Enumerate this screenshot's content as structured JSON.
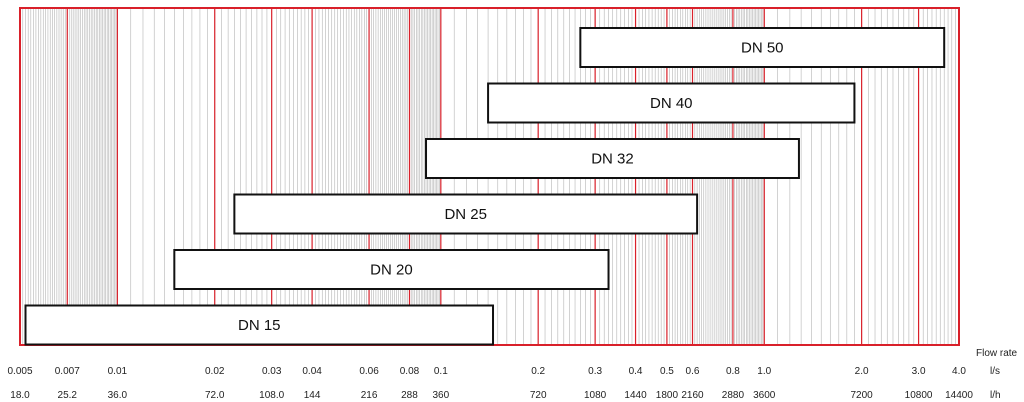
{
  "chart_data": {
    "type": "bar",
    "orientation": "horizontal-range",
    "x_scale": "log",
    "xlim": [
      0.005,
      4.0
    ],
    "grid": true,
    "colors": {
      "major_grid": "#d9202a",
      "minor_grid": "#b4b4b4",
      "frame": "#d9202a",
      "bar_fill": "#ffffff",
      "bar_stroke": "#111111"
    },
    "flow_rate_label": "Flow rate",
    "units": {
      "ls": "l/s",
      "lh": "l/h"
    },
    "major_ticks": [
      0.005,
      0.007,
      0.01,
      0.02,
      0.03,
      0.04,
      0.06,
      0.08,
      0.1,
      0.2,
      0.3,
      0.4,
      0.5,
      0.6,
      0.8,
      1.0,
      2.0,
      3.0,
      4.0
    ],
    "ticks_ls": [
      {
        "value": 0.005,
        "label": "0.005"
      },
      {
        "value": 0.007,
        "label": "0.007"
      },
      {
        "value": 0.01,
        "label": "0.01"
      },
      {
        "value": 0.02,
        "label": "0.02"
      },
      {
        "value": 0.03,
        "label": "0.03"
      },
      {
        "value": 0.04,
        "label": "0.04"
      },
      {
        "value": 0.06,
        "label": "0.06"
      },
      {
        "value": 0.08,
        "label": "0.08"
      },
      {
        "value": 0.1,
        "label": "0.1"
      },
      {
        "value": 0.2,
        "label": "0.2"
      },
      {
        "value": 0.3,
        "label": "0.3"
      },
      {
        "value": 0.4,
        "label": "0.4"
      },
      {
        "value": 0.5,
        "label": "0.5"
      },
      {
        "value": 0.6,
        "label": "0.6"
      },
      {
        "value": 0.8,
        "label": "0.8"
      },
      {
        "value": 1.0,
        "label": "1.0"
      },
      {
        "value": 2.0,
        "label": "2.0"
      },
      {
        "value": 3.0,
        "label": "3.0"
      },
      {
        "value": 4.0,
        "label": "4.0"
      }
    ],
    "ticks_lh": [
      {
        "value": 0.005,
        "label": "18.0"
      },
      {
        "value": 0.007,
        "label": "25.2"
      },
      {
        "value": 0.01,
        "label": "36.0"
      },
      {
        "value": 0.02,
        "label": "72.0"
      },
      {
        "value": 0.03,
        "label": "108.0"
      },
      {
        "value": 0.04,
        "label": "144"
      },
      {
        "value": 0.06,
        "label": "216"
      },
      {
        "value": 0.08,
        "label": "288"
      },
      {
        "value": 0.1,
        "label": "360"
      },
      {
        "value": 0.2,
        "label": "720"
      },
      {
        "value": 0.3,
        "label": "1080"
      },
      {
        "value": 0.4,
        "label": "1440"
      },
      {
        "value": 0.5,
        "label": "1800"
      },
      {
        "value": 0.6,
        "label": "2160"
      },
      {
        "value": 0.8,
        "label": "2880"
      },
      {
        "value": 1.0,
        "label": "3600"
      },
      {
        "value": 2.0,
        "label": "7200"
      },
      {
        "value": 3.0,
        "label": "10800"
      },
      {
        "value": 4.0,
        "label": "14400"
      }
    ],
    "bars": [
      {
        "label": "DN 50",
        "start": 0.27,
        "end": 3.6
      },
      {
        "label": "DN 40",
        "start": 0.14,
        "end": 1.9
      },
      {
        "label": "DN 32",
        "start": 0.09,
        "end": 1.28
      },
      {
        "label": "DN 25",
        "start": 0.023,
        "end": 0.62
      },
      {
        "label": "DN 20",
        "start": 0.015,
        "end": 0.33
      },
      {
        "label": "DN 15",
        "start": 0.0052,
        "end": 0.145
      }
    ]
  }
}
